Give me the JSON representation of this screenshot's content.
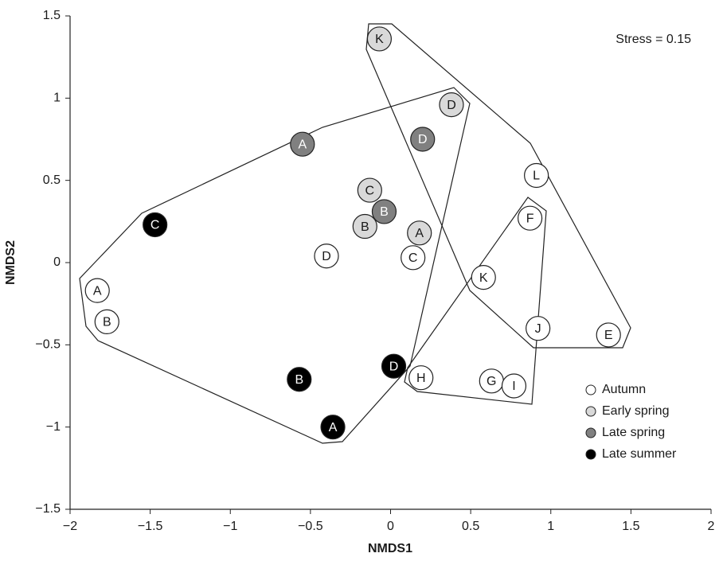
{
  "chart_data": {
    "type": "scatter",
    "xlabel": "NMDS1",
    "ylabel": "NMDS2",
    "annotation": "Stress = 0.15",
    "xlim": [
      -2,
      2
    ],
    "ylim": [
      -1.5,
      1.5
    ],
    "xticks": [
      {
        "value": -2,
        "label": "−2"
      },
      {
        "value": -1.5,
        "label": "−1.5"
      },
      {
        "value": -1,
        "label": "−1"
      },
      {
        "value": -0.5,
        "label": "−0.5"
      },
      0,
      0.5,
      1,
      1.5,
      2
    ],
    "yticks": [
      {
        "value": -1.5,
        "label": "−1.5"
      },
      {
        "value": -1,
        "label": "−1"
      },
      {
        "value": -0.5,
        "label": "−0.5"
      },
      0,
      0.5,
      1,
      1.5
    ],
    "legend": "lower right",
    "series": [
      {
        "name": "Autumn",
        "color": "#ffffff",
        "label_color": "#1a1a1a",
        "labels": [
          "A",
          "B",
          "D",
          "C",
          "K",
          "L",
          "F",
          "J",
          "E",
          "H",
          "G",
          "I"
        ],
        "x": [
          -1.83,
          -1.77,
          -0.4,
          0.14,
          0.58,
          0.91,
          0.87,
          0.92,
          1.36,
          0.19,
          0.63,
          0.77
        ],
        "y": [
          -0.17,
          -0.36,
          0.04,
          0.03,
          -0.09,
          0.53,
          0.27,
          -0.4,
          -0.44,
          -0.7,
          -0.72,
          -0.75
        ]
      },
      {
        "name": "Early spring",
        "color": "#d9d9d9",
        "label_color": "#1a1a1a",
        "labels": [
          "K",
          "D",
          "C",
          "B",
          "A"
        ],
        "x": [
          -0.07,
          0.38,
          -0.13,
          -0.16,
          0.18
        ],
        "y": [
          1.36,
          0.96,
          0.44,
          0.22,
          0.18
        ]
      },
      {
        "name": "Late spring",
        "color": "#808080",
        "label_color": "#ffffff",
        "labels": [
          "A",
          "D",
          "B"
        ],
        "x": [
          -0.55,
          0.2,
          -0.04
        ],
        "y": [
          0.72,
          0.75,
          0.31
        ]
      },
      {
        "name": "Late summer",
        "color": "#000000",
        "label_color": "#ffffff",
        "labels": [
          "C",
          "B",
          "A",
          "D"
        ],
        "x": [
          -1.47,
          -0.57,
          -0.36,
          0.02
        ],
        "y": [
          0.23,
          -0.71,
          -1.0,
          -0.63
        ]
      }
    ]
  }
}
